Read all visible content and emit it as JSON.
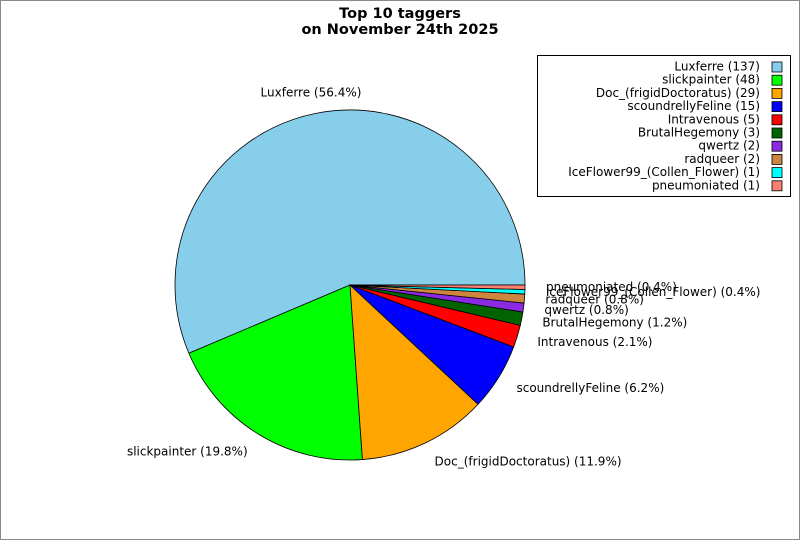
{
  "chart_data": {
    "type": "pie",
    "title": "Top 10 taggers",
    "subtitle": "on November 24th 2025",
    "categories": [
      "Luxferre (137)",
      "slickpainter (48)",
      "Doc_(frigidDoctoratus) (29)",
      "scoundrellyFeline (15)",
      "Intravenous (5)",
      "BrutalHegemony (3)",
      "qwertz (2)",
      "radqueer (2)",
      "IceFlower99_(Collen_Flower) (1)",
      "pneumoniated (1)"
    ],
    "values": [
      137,
      48,
      29,
      15,
      5,
      3,
      2,
      2,
      1,
      1
    ],
    "value_labels": [
      "Luxferre (56.4%)",
      "slickpainter (19.8%)",
      "Doc_(frigidDoctoratus) (11.9%)",
      "scoundrellyFeline (6.2%)",
      "Intravenous (2.1%)",
      "BrutalHegemony (1.2%)",
      "qwertz (0.8%)",
      "radqueer (0.8%)",
      "IceFlower99_(Collen_Flower) (0.4%)",
      "pneumoniated (0.4%)"
    ],
    "colors": [
      "#87ceeb",
      "#00ff00",
      "#ffa500",
      "#0000ff",
      "#ff0000",
      "#006400",
      "#8a2be2",
      "#cd853f",
      "#00ffff",
      "#fa8072"
    ],
    "legend": "upper right"
  }
}
